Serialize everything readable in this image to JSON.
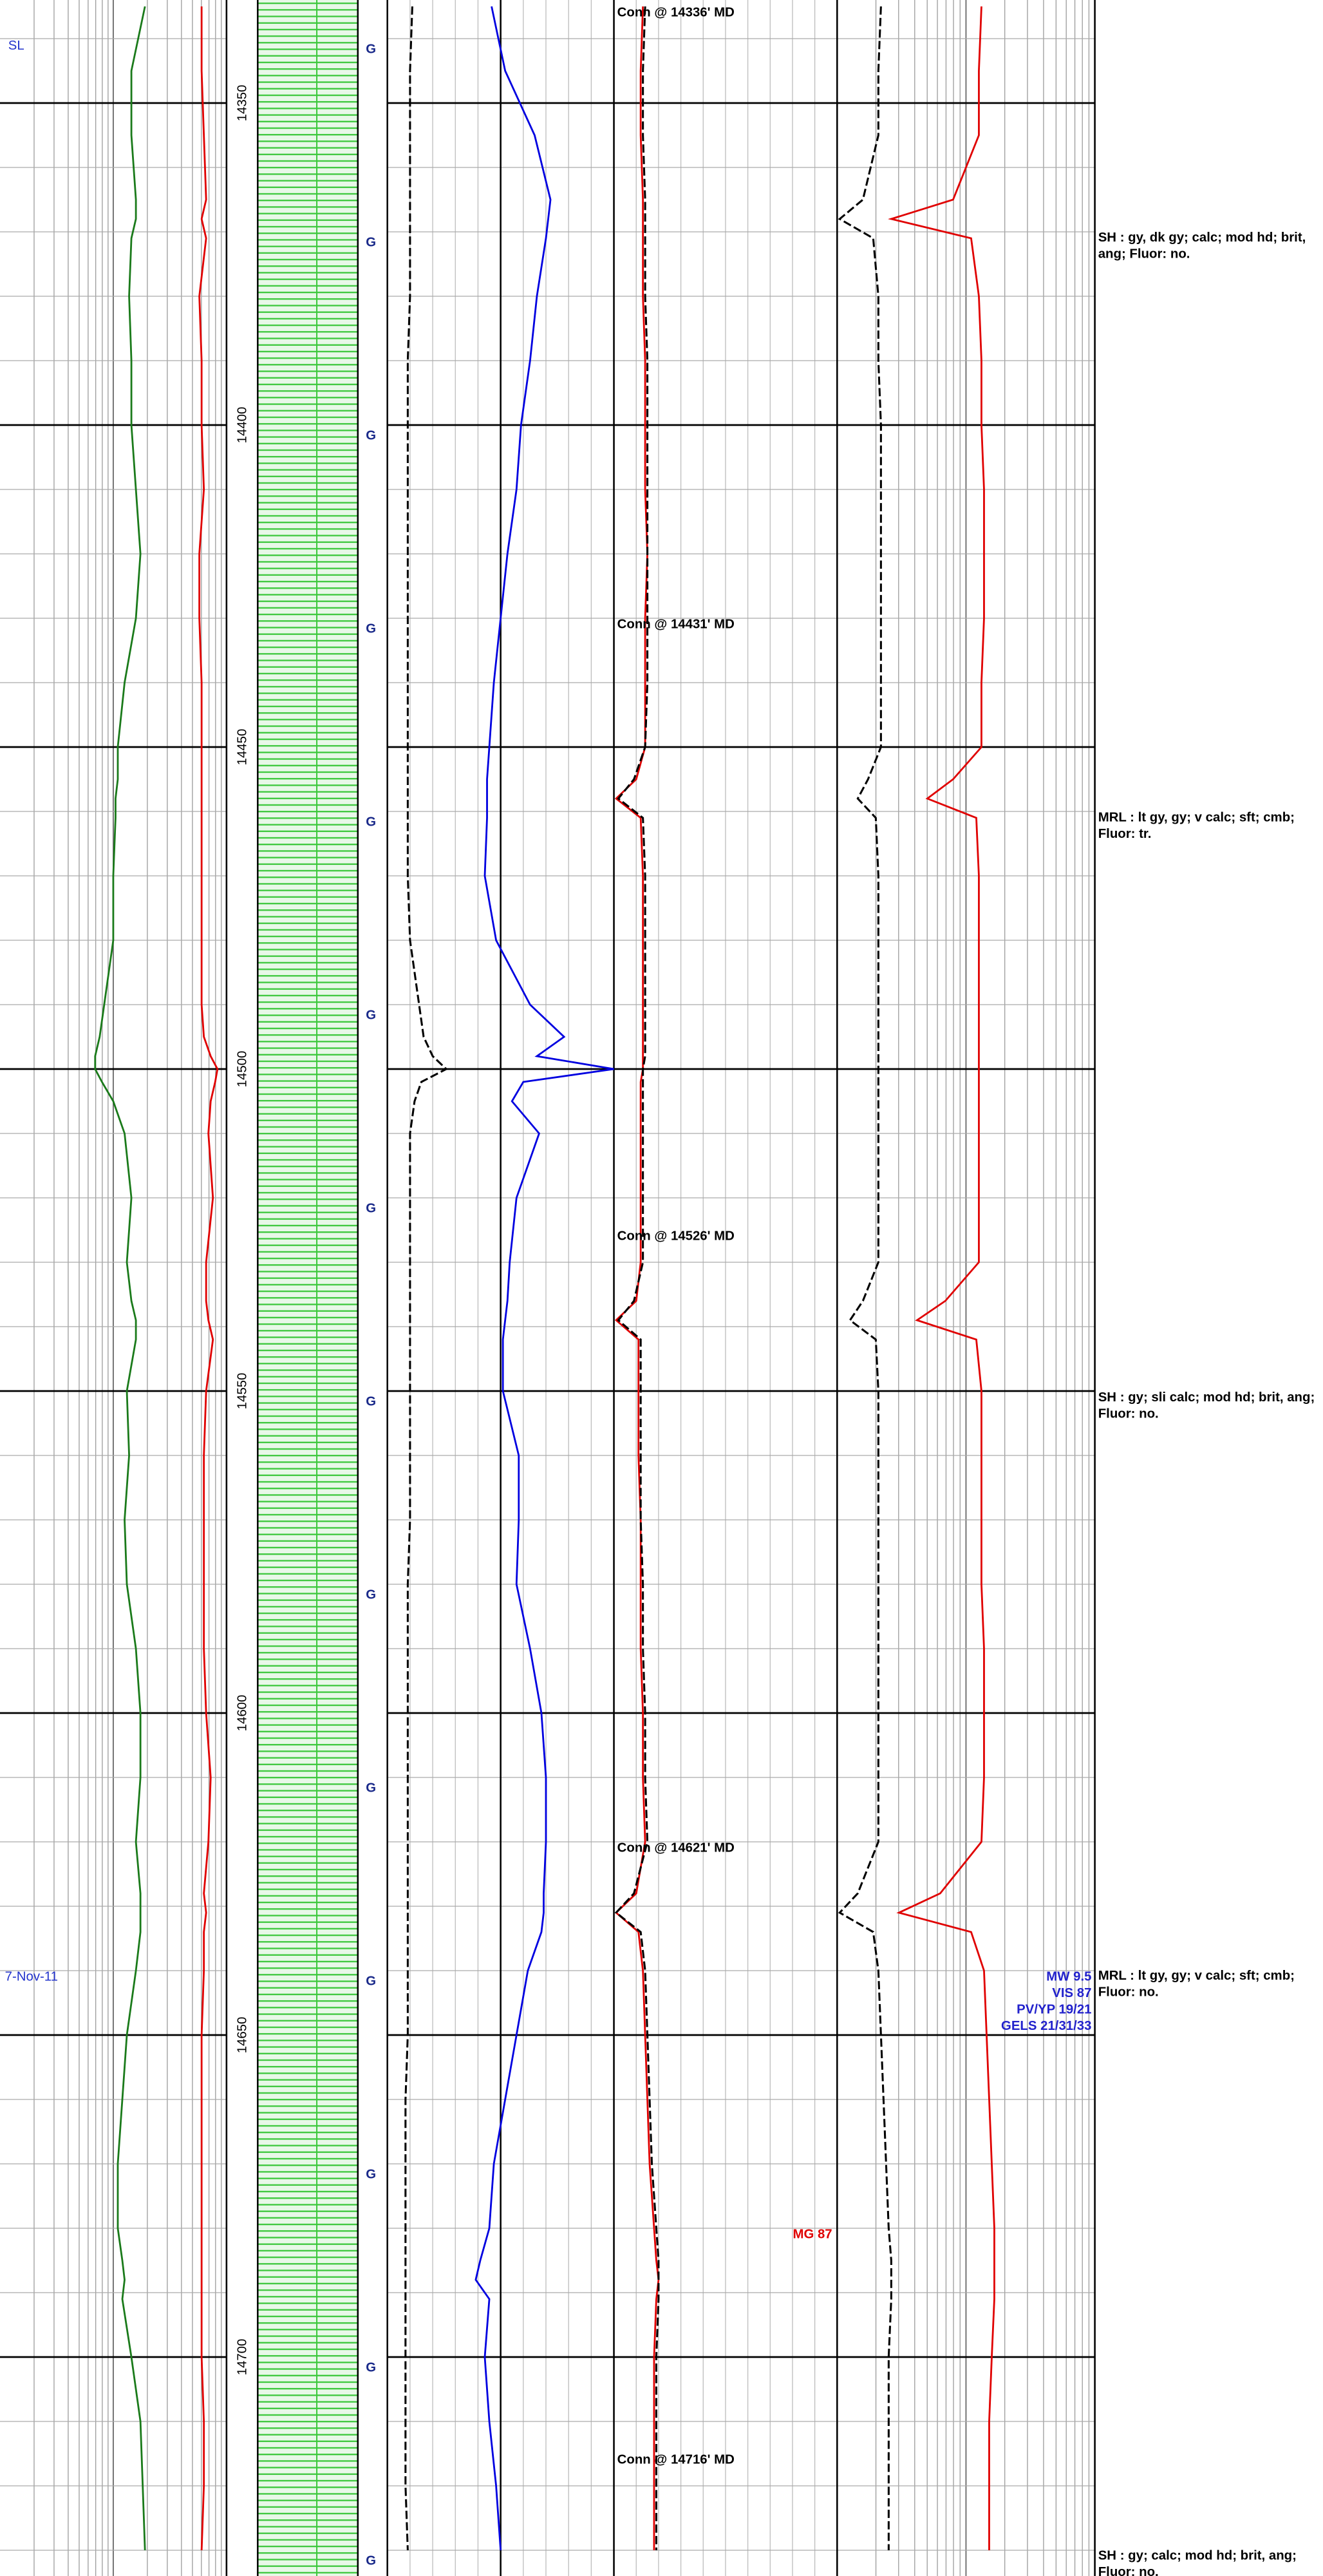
{
  "header_labels": {
    "top_left": "SL",
    "date": "7-Nov-11"
  },
  "chart_data": {
    "type": "well-log",
    "ylim": [
      14334,
      14734
    ],
    "yticks": [
      14350,
      14400,
      14450,
      14500,
      14550,
      14600,
      14650,
      14700
    ],
    "xlim": [
      0,
      100
    ],
    "grid": true,
    "depths": [
      14335,
      14345,
      14355,
      14365,
      14368,
      14371,
      14380,
      14390,
      14400,
      14410,
      14420,
      14430,
      14440,
      14450,
      14455,
      14458,
      14461,
      14470,
      14480,
      14490,
      14495,
      14498,
      14500,
      14502,
      14505,
      14510,
      14520,
      14530,
      14536,
      14539,
      14542,
      14550,
      14560,
      14570,
      14580,
      14590,
      14600,
      14610,
      14620,
      14628,
      14631,
      14634,
      14640,
      14650,
      14660,
      14670,
      14680,
      14685,
      14688,
      14691,
      14700,
      14710,
      14720,
      14730
    ],
    "series": [
      {
        "color": "#1a7a1a",
        "track": 0,
        "dashed": false,
        "values": [
          64,
          58,
          58,
          60,
          60,
          58,
          57,
          58,
          58,
          60,
          62,
          60,
          55,
          52,
          52,
          51,
          51,
          50,
          50,
          46,
          44,
          42,
          42,
          45,
          50,
          55,
          58,
          56,
          58,
          60,
          60,
          56,
          57,
          55,
          56,
          60,
          62,
          62,
          60,
          62,
          62,
          62,
          60,
          56,
          54,
          52,
          52,
          54,
          55,
          54,
          58,
          62,
          63,
          64
        ]
      },
      {
        "color": "#e00000",
        "track": 0,
        "dashed": false,
        "values": [
          89,
          89,
          90,
          91,
          89,
          91,
          88,
          89,
          89,
          90,
          88,
          88,
          89,
          89,
          89,
          89,
          89,
          89,
          89,
          89,
          90,
          93,
          96,
          95,
          93,
          92,
          94,
          91,
          91,
          92,
          94,
          91,
          90,
          90,
          90,
          90,
          91,
          93,
          92,
          90,
          91,
          90,
          90,
          89,
          89,
          89,
          89,
          89,
          89,
          89,
          89,
          90,
          90,
          89
        ]
      },
      {
        "color": "#000000",
        "track": 1,
        "dashed": true,
        "values": [
          11,
          10,
          10,
          10,
          10,
          10,
          10,
          9,
          9,
          9,
          9,
          9,
          9,
          9,
          9,
          9,
          9,
          9,
          10,
          14,
          16,
          20,
          26,
          15,
          12,
          10,
          10,
          10,
          10,
          10,
          10,
          10,
          10,
          10,
          9,
          9,
          9,
          9,
          9,
          9,
          9,
          9,
          9,
          9,
          8,
          8,
          8,
          8,
          8,
          8,
          8,
          8,
          8,
          9
        ]
      },
      {
        "color": "#0000e0",
        "track": 1,
        "dashed": false,
        "values": [
          46,
          52,
          65,
          72,
          71,
          70,
          66,
          63,
          59,
          57,
          53,
          50,
          47,
          45,
          44,
          44,
          44,
          43,
          48,
          63,
          78,
          66,
          100,
          60,
          55,
          67,
          57,
          54,
          53,
          52,
          51,
          51,
          58,
          58,
          57,
          63,
          68,
          70,
          70,
          69,
          69,
          68,
          62,
          57,
          52,
          47,
          45,
          41,
          39,
          45,
          43,
          45,
          48,
          50
        ]
      },
      {
        "color": "#e00000",
        "track": 2,
        "dashed": false,
        "values": [
          13,
          12,
          12,
          13,
          13,
          13,
          13,
          14,
          14,
          14,
          15,
          14,
          14,
          14,
          10,
          1,
          12,
          13,
          13,
          13,
          13,
          13,
          13,
          12,
          12,
          12,
          12,
          12,
          10,
          1,
          11,
          11,
          11,
          12,
          12,
          12,
          13,
          13,
          14,
          10,
          1,
          11,
          13,
          14,
          15,
          16,
          18,
          19,
          20,
          19,
          18,
          18,
          18,
          18
        ]
      },
      {
        "color": "#000000",
        "track": 2,
        "dashed": true,
        "values": [
          14,
          13,
          13,
          14,
          14,
          14,
          14,
          15,
          15,
          15,
          15,
          15,
          15,
          14,
          9,
          2,
          13,
          14,
          14,
          14,
          14,
          14,
          13,
          13,
          13,
          13,
          13,
          13,
          9,
          2,
          12,
          12,
          12,
          12,
          13,
          13,
          14,
          14,
          15,
          9,
          1,
          12,
          14,
          15,
          16,
          17,
          19,
          20,
          20,
          20,
          19,
          19,
          19,
          19
        ]
      },
      {
        "color": "#000000",
        "track": 3,
        "dashed": true,
        "values": [
          17,
          16,
          16,
          10,
          1,
          14,
          16,
          16,
          17,
          17,
          17,
          17,
          17,
          17,
          12,
          8,
          15,
          16,
          16,
          16,
          16,
          16,
          16,
          16,
          16,
          16,
          16,
          16,
          10,
          5,
          15,
          16,
          16,
          16,
          16,
          16,
          16,
          16,
          16,
          8,
          1,
          14,
          16,
          17,
          18,
          19,
          20,
          21,
          21,
          21,
          20,
          20,
          20,
          20
        ]
      },
      {
        "color": "#e00000",
        "track": 3,
        "dashed": false,
        "values": [
          56,
          55,
          55,
          45,
          21,
          52,
          55,
          56,
          56,
          57,
          57,
          57,
          56,
          56,
          45,
          35,
          54,
          55,
          55,
          55,
          55,
          55,
          55,
          55,
          55,
          55,
          55,
          55,
          42,
          31,
          54,
          56,
          56,
          56,
          56,
          57,
          57,
          57,
          56,
          40,
          24,
          52,
          57,
          58,
          59,
          60,
          61,
          61,
          61,
          61,
          60,
          59,
          59,
          59
        ]
      }
    ],
    "connections": [
      {
        "label": "Conn @ 14336' MD",
        "depth": 14336
      },
      {
        "label": "Conn @ 14431' MD",
        "depth": 14431
      },
      {
        "label": "Conn @ 14526' MD",
        "depth": 14526
      },
      {
        "label": "Conn @ 14621' MD",
        "depth": 14621
      },
      {
        "label": "Conn @ 14716' MD",
        "depth": 14716
      }
    ]
  },
  "lithology_codes": [
    "G",
    "G",
    "G",
    "G",
    "G",
    "G",
    "G",
    "G",
    "G",
    "G",
    "G",
    "G",
    "G",
    "G"
  ],
  "descriptions": [
    "SH : gy, dk gy;  calc;  mod hd; brit, ang;  Fluor: no.",
    "MRL : lt gy, gy;  v calc;  sft; cmb;  Fluor: tr.",
    "SH : gy;  sli calc;  mod hd;  brit, ang;  Fluor: no.",
    "MRL : lt gy, gy;  v calc;  sft; cmb;  Fluor: no.",
    "SH : gy;  calc;  mod hd;  brit, ang;  Fluor: no."
  ],
  "mud_properties": [
    "MW 9.5",
    "VIS 87",
    "PV/YP 19/21",
    "GELS 21/31/33"
  ],
  "gas_note": "MG 87"
}
